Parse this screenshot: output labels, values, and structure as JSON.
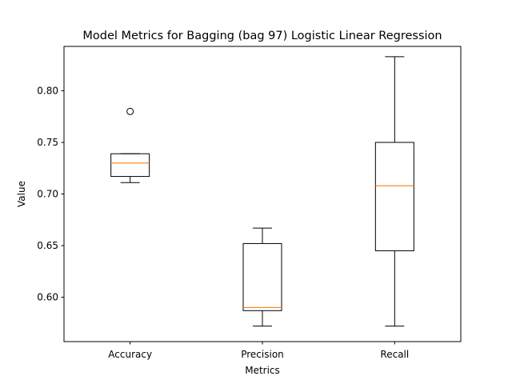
{
  "chart_data": {
    "type": "box",
    "title": "Model Metrics for Bagging (bag 97) Logistic Linear Regression",
    "xlabel": "Metrics",
    "ylabel": "Value",
    "ylim": [
      0.557,
      0.843
    ],
    "yticks": [
      0.6,
      0.65,
      0.7,
      0.75,
      0.8
    ],
    "ytick_labels": [
      "0.60",
      "0.65",
      "0.70",
      "0.75",
      "0.80"
    ],
    "categories": [
      "Accuracy",
      "Precision",
      "Recall"
    ],
    "boxes": [
      {
        "category": "Accuracy",
        "whisker_low": 0.711,
        "q1": 0.717,
        "median": 0.73,
        "q3": 0.739,
        "whisker_high": 0.739,
        "outliers": [
          0.78
        ]
      },
      {
        "category": "Precision",
        "whisker_low": 0.572,
        "q1": 0.587,
        "median": 0.59,
        "q3": 0.652,
        "whisker_high": 0.667,
        "outliers": []
      },
      {
        "category": "Recall",
        "whisker_low": 0.572,
        "q1": 0.645,
        "median": 0.708,
        "q3": 0.75,
        "whisker_high": 0.833,
        "outliers": []
      }
    ],
    "colors": {
      "box": "#000000",
      "median": "#ff7f0e",
      "outlier": "#000000"
    },
    "grid": false,
    "legend": "none"
  }
}
